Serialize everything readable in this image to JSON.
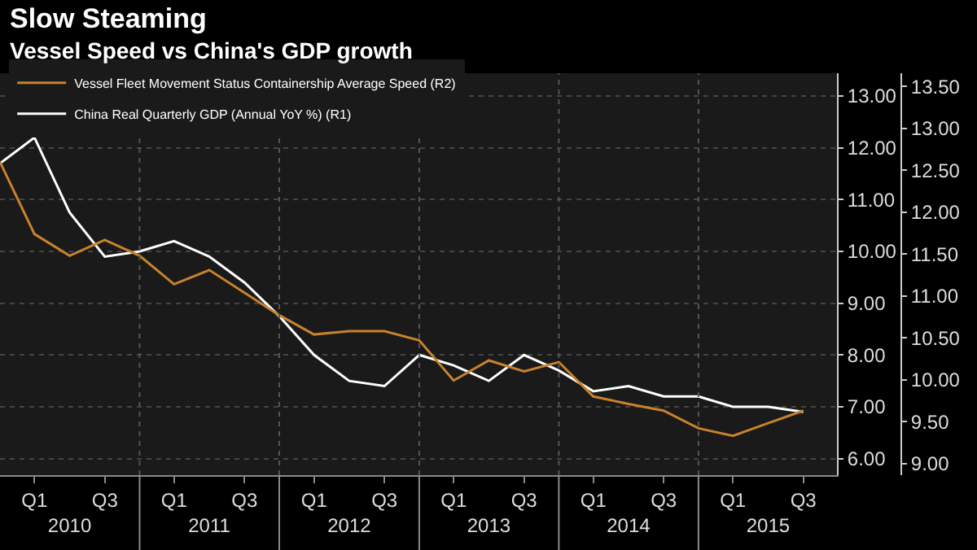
{
  "chart_data": {
    "type": "line",
    "title": "Slow Steaming",
    "subtitle": "Vessel Speed vs China's GDP growth",
    "x": [
      "2009-12",
      "2010-03",
      "2010-06",
      "2010-09",
      "2010-12",
      "2011-03",
      "2011-06",
      "2011-09",
      "2011-12",
      "2012-03",
      "2012-06",
      "2012-09",
      "2012-12",
      "2013-03",
      "2013-06",
      "2013-09",
      "2013-12",
      "2014-03",
      "2014-06",
      "2014-09",
      "2014-12",
      "2015-03",
      "2015-06",
      "2015-09"
    ],
    "series": [
      {
        "name": "Vessel Fleet Movement Status Containership Average Speed (R2)",
        "color": "#c8822e",
        "axis": "y2",
        "values": [
          12.6,
          11.74,
          11.48,
          11.67,
          11.48,
          11.14,
          11.31,
          11.04,
          10.77,
          10.54,
          10.58,
          10.58,
          10.47,
          9.99,
          10.23,
          10.1,
          10.21,
          9.8,
          9.71,
          9.63,
          9.42,
          9.33,
          9.48,
          9.63
        ]
      },
      {
        "name": "China Real Quarterly GDP (Annual YoY %) (R1)",
        "color": "#ffffff",
        "values": [
          11.7,
          12.2,
          10.75,
          9.9,
          10.0,
          10.2,
          9.9,
          9.4,
          8.75,
          8.0,
          7.5,
          7.4,
          8.0,
          7.8,
          7.5,
          8.0,
          7.7,
          7.3,
          7.4,
          7.2,
          7.2,
          7.0,
          7.0,
          6.9
        ]
      }
    ],
    "xlim": [
      "2009-12",
      "2015-11-28"
    ],
    "xticks": [
      {
        "value": "2010-03",
        "label": "Q1"
      },
      {
        "value": "2010-09",
        "label": "Q3"
      },
      {
        "value": "2011-03",
        "label": "Q1"
      },
      {
        "value": "2011-09",
        "label": "Q3"
      },
      {
        "value": "2012-03",
        "label": "Q1"
      },
      {
        "value": "2012-09",
        "label": "Q3"
      },
      {
        "value": "2013-03",
        "label": "Q1"
      },
      {
        "value": "2013-09",
        "label": "Q3"
      },
      {
        "value": "2014-03",
        "label": "Q1"
      },
      {
        "value": "2014-09",
        "label": "Q3"
      },
      {
        "value": "2015-03",
        "label": "Q1"
      },
      {
        "value": "2015-09",
        "label": "Q3"
      }
    ],
    "x2lim": [
      "2009-12",
      "2015-11-28"
    ],
    "x2ticks": [
      {
        "value": "2010-06",
        "label": "2010"
      },
      {
        "value": "2010-12",
        "label": null
      },
      {
        "value": "2011-06",
        "label": "2011"
      },
      {
        "value": "2011-12",
        "label": null
      },
      {
        "value": "2012-06",
        "label": "2012"
      },
      {
        "value": "2012-12",
        "label": null
      },
      {
        "value": "2013-06",
        "label": "2013"
      },
      {
        "value": "2013-12",
        "label": null
      },
      {
        "value": "2014-06",
        "label": "2014"
      },
      {
        "value": "2014-12",
        "label": null
      },
      {
        "value": "2015-06",
        "label": "2015"
      }
    ],
    "ylim": [
      5.68,
      13.44
    ],
    "yticks": [
      {
        "value": 6,
        "label": "6.00"
      },
      {
        "value": 7,
        "label": "7.00"
      },
      {
        "value": 8,
        "label": "8.00"
      },
      {
        "value": 9,
        "label": "9.00"
      },
      {
        "value": 10,
        "label": "10.00"
      },
      {
        "value": 11,
        "label": "11.00"
      },
      {
        "value": 12,
        "label": "12.00"
      },
      {
        "value": 13,
        "label": "13.00"
      }
    ],
    "y2lim": [
      8.86,
      13.66
    ],
    "y2ticks": [
      {
        "value": 9,
        "label": "9.00"
      },
      {
        "value": 9.5,
        "label": "9.50"
      },
      {
        "value": 10,
        "label": "10.00"
      },
      {
        "value": 10.5,
        "label": "10.50"
      },
      {
        "value": 11,
        "label": "11.00"
      },
      {
        "value": 11.5,
        "label": "11.50"
      },
      {
        "value": 12,
        "label": "12.00"
      },
      {
        "value": 12.5,
        "label": "12.50"
      },
      {
        "value": 13,
        "label": "13.00"
      },
      {
        "value": 13.5,
        "label": "13.50"
      }
    ],
    "grid": true,
    "legend": "top left"
  }
}
